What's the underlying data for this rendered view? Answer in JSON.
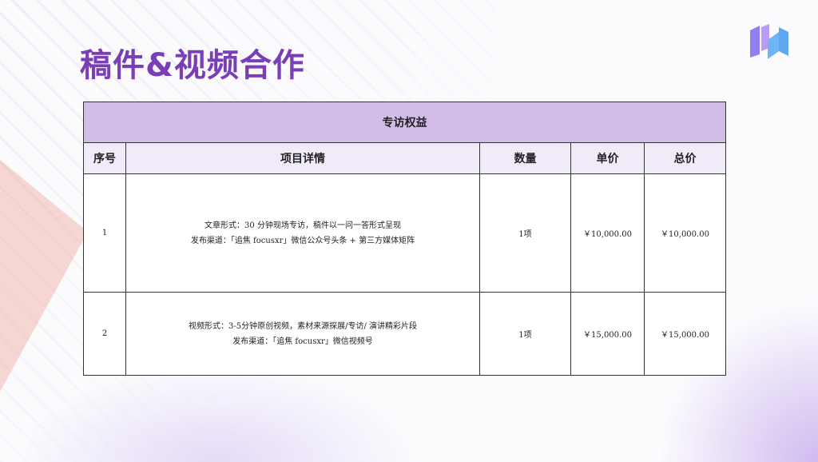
{
  "title": "稿件&视频合作",
  "logo": "brand-logo",
  "table": {
    "caption": "专访权益",
    "headers": [
      "序号",
      "项目详情",
      "数量",
      "单价",
      "总价"
    ],
    "rows": [
      {
        "no": "1",
        "details": [
          "文章形式：30 分钟现场专访，稿件以一问一答形式呈现",
          "发布渠道：「追焦 focusxr」微信公众号头条 + 第三方媒体矩阵"
        ],
        "qty": "1项",
        "unit": "￥10,000.00",
        "total": "￥10,000.00"
      },
      {
        "no": "2",
        "details": [
          "视频形式：3-5分钟原创视频，素材来源探展/专访/ 演讲精彩片段",
          "发布渠道：「追焦 focusxr」微信视频号"
        ],
        "qty": "1项",
        "unit": "￥15,000.00",
        "total": "￥15,000.00"
      }
    ]
  },
  "colors": {
    "accent": "#7a3fb5",
    "header": "#d2bce8"
  }
}
